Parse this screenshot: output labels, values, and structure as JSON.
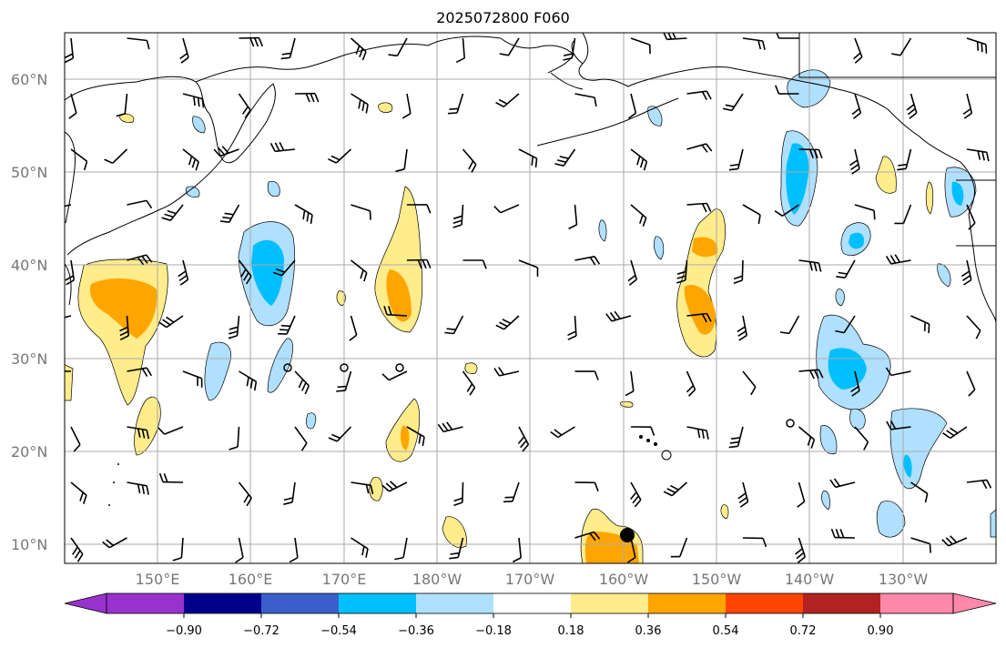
{
  "title": "2025072800 F060",
  "lat_labels": [
    "60°N",
    "50°N",
    "40°N",
    "30°N",
    "20°N",
    "10°N"
  ],
  "lon_labels": [
    "150°E",
    "160°E",
    "170°E",
    "180°W",
    "170°W",
    "160°W",
    "150°W",
    "140°W",
    "130°W"
  ],
  "colorbar": {
    "tick_labels": [
      "−0.90",
      "−0.72",
      "−0.54",
      "−0.36",
      "−0.18",
      "0.18",
      "0.36",
      "0.54",
      "0.72",
      "0.90"
    ],
    "colors": [
      "#9932cc",
      "#00008b",
      "#3a5fcd",
      "#00bfff",
      "#b0e0ff",
      "#ffffff",
      "#ffec8b",
      "#ffa500",
      "#ff4500",
      "#b22222",
      "#ff88aa"
    ]
  },
  "colors": {
    "coastline": "#000000",
    "grid": "#aaaaaa",
    "positive_light": "#ffec8b",
    "positive_mid": "#ffa500",
    "negative_light": "#b0e0ff",
    "negative_mid": "#00bfff"
  },
  "map": {
    "extent": {
      "lon_min": 140,
      "lon_max": 240,
      "lat_min": 8,
      "lat_max": 65
    }
  }
}
